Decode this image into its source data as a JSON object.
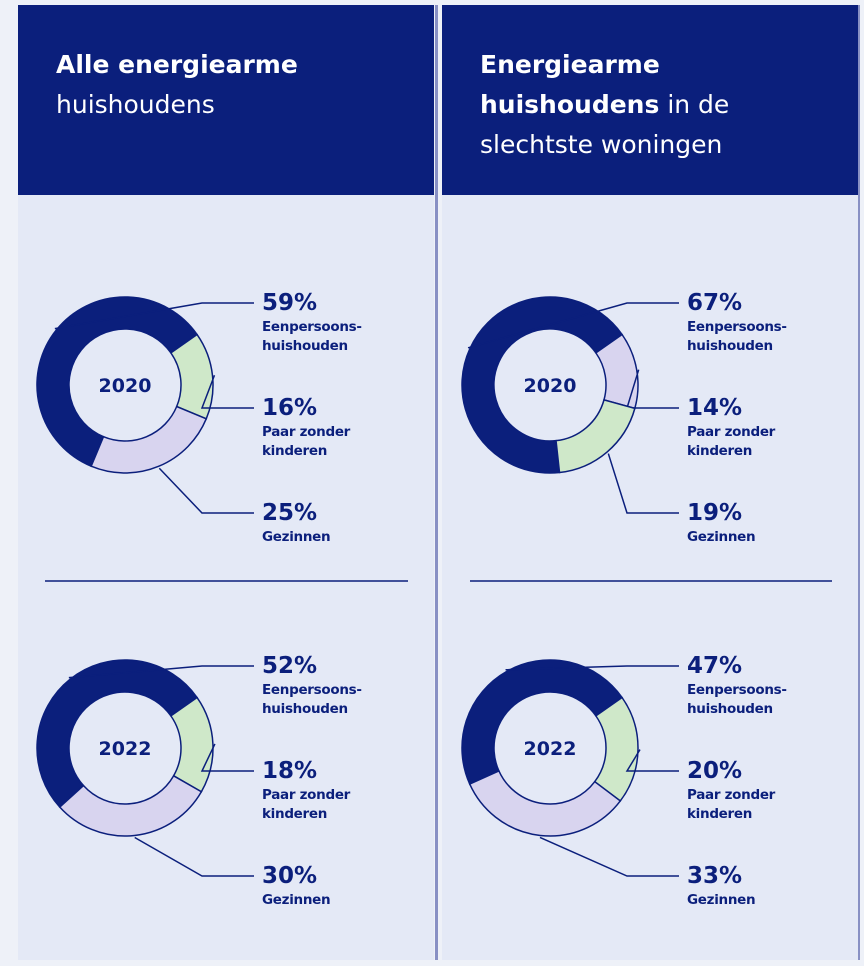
{
  "columns": [
    {
      "title_bold": "Alle energiearme",
      "title_rest": "huishoudens"
    },
    {
      "title_bold": "Energiearme huishoudens",
      "title_rest": "in de slechtste woningen"
    }
  ],
  "chart_data": [
    {
      "type": "donut",
      "center_label": "2020",
      "categories": [
        "Eenpersoons-\nhuishouden",
        "Paar zonder\nkinderen",
        "Gezinnen"
      ],
      "values": [
        59,
        16,
        25
      ],
      "value_labels": [
        "59%",
        "16%",
        "25%"
      ],
      "colors": [
        "#0b1f7c",
        "#cfe8c9",
        "#d8d4ef"
      ]
    },
    {
      "type": "donut",
      "center_label": "2020",
      "categories": [
        "Eenpersoons-\nhuishouden",
        "Paar zonder\nkinderen",
        "Gezinnen"
      ],
      "values": [
        67,
        14,
        19
      ],
      "value_labels": [
        "67%",
        "14%",
        "19%"
      ],
      "colors": [
        "#0b1f7c",
        "#d8d4ef",
        "#cfe8c9"
      ]
    },
    {
      "type": "donut",
      "center_label": "2022",
      "categories": [
        "Eenpersoons-\nhuishouden",
        "Paar zonder\nkinderen",
        "Gezinnen"
      ],
      "values": [
        52,
        18,
        30
      ],
      "value_labels": [
        "52%",
        "18%",
        "30%"
      ],
      "colors": [
        "#0b1f7c",
        "#cfe8c9",
        "#d8d4ef"
      ]
    },
    {
      "type": "donut",
      "center_label": "2022",
      "categories": [
        "Eenpersoons-\nhuishouden",
        "Paar zonder\nkinderen",
        "Gezinnen"
      ],
      "values": [
        47,
        20,
        33
      ],
      "value_labels": [
        "47%",
        "20%",
        "33%"
      ],
      "colors": [
        "#0b1f7c",
        "#cfe8c9",
        "#d8d4ef"
      ]
    }
  ]
}
